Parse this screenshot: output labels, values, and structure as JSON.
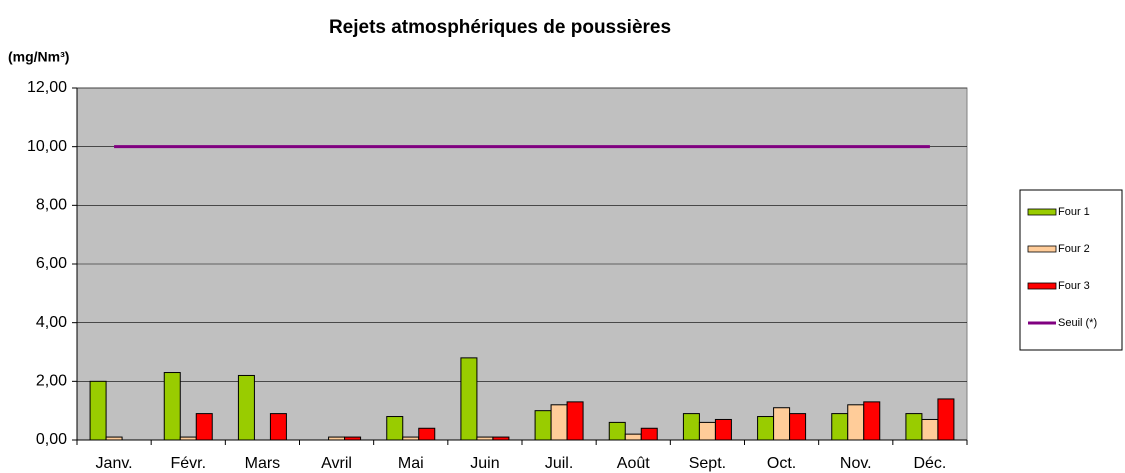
{
  "chart_data": {
    "type": "bar",
    "title": "Rejets atmosphériques de poussières",
    "y_label": "(mg/Nm³)",
    "categories": [
      "Janv.",
      "Févr.",
      "Mars",
      "Avril",
      "Mai",
      "Juin",
      "Juil.",
      "Août",
      "Sept.",
      "Oct.",
      "Nov.",
      "Déc."
    ],
    "series": [
      {
        "name": "Four 1",
        "color": "#99cc00",
        "type": "bar",
        "values": [
          2.0,
          2.3,
          2.2,
          0,
          0.8,
          2.8,
          1.0,
          0.6,
          0.9,
          0.8,
          0.9,
          0.9
        ]
      },
      {
        "name": "Four 2",
        "color": "#ffcc99",
        "type": "bar",
        "values": [
          0.1,
          0.1,
          0,
          0.1,
          0.1,
          0.1,
          1.2,
          0.2,
          0.6,
          1.1,
          1.2,
          0.7
        ]
      },
      {
        "name": "Four 3",
        "color": "#ff0000",
        "type": "bar",
        "values": [
          0,
          0.9,
          0.9,
          0.1,
          0.4,
          0.1,
          1.3,
          0.4,
          0.7,
          0.9,
          1.3,
          1.4
        ]
      },
      {
        "name": "Seuil (*)",
        "color": "#800080",
        "type": "line",
        "values": [
          10,
          10,
          10,
          10,
          10,
          10,
          10,
          10,
          10,
          10,
          10,
          10
        ]
      }
    ],
    "ylim": [
      0,
      12
    ],
    "yticks": [
      {
        "value": 0,
        "label": "0,00"
      },
      {
        "value": 2,
        "label": "2,00"
      },
      {
        "value": 4,
        "label": "4,00"
      },
      {
        "value": 6,
        "label": "6,00"
      },
      {
        "value": 8,
        "label": "8,00"
      },
      {
        "value": 10,
        "label": "10,00"
      },
      {
        "value": 12,
        "label": "12,00"
      }
    ],
    "grid": true,
    "legend": "right"
  }
}
